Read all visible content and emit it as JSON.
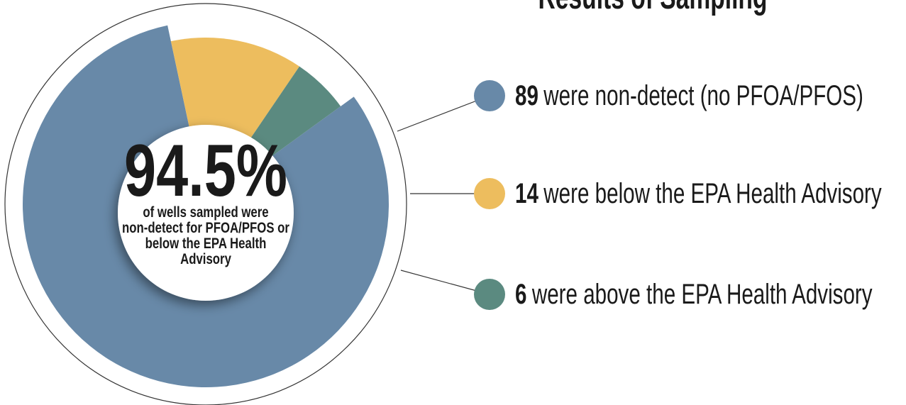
{
  "chart_data": {
    "type": "donut",
    "title": "Results of Sampling",
    "center_label": "94.5%",
    "center_text": [
      "of wells sampled were",
      "non-detect for PFOA/PFOS or",
      "below the EPA Health",
      "Advisory"
    ],
    "categories": [
      "were non-detect (no PFOA/PFOS)",
      "were below the EPA Health Advisory",
      "were above the EPA Health Advisory"
    ],
    "values": [
      89,
      14,
      6
    ],
    "colors": [
      "#6889a8",
      "#edbd5e",
      "#5b8a80"
    ]
  }
}
